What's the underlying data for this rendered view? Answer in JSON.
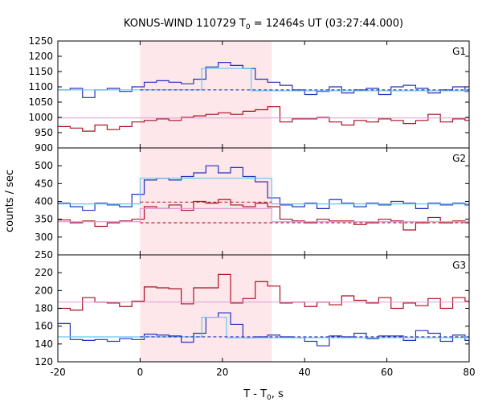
{
  "title_main": "KONUS-WIND 110729 T",
  "title_sub": "0",
  "title_rest": " = 12464s UT (03:27:44.000)",
  "ylabel": "counts / sec",
  "xlabel_main": "T - T",
  "xlabel_sub": "0",
  "xlabel_rest": ", s",
  "colors": {
    "blue": "#2233bb",
    "red": "#aa1122",
    "cyan": "#66c8ee",
    "pink": "#e49ad8",
    "shade": "#fde7ea"
  },
  "chart_data": [
    {
      "type": "line",
      "panel": "G1",
      "xlim": [
        -20,
        80
      ],
      "ylim": [
        900,
        1250
      ],
      "yticks": [
        900,
        950,
        1000,
        1050,
        1100,
        1150,
        1200,
        1250
      ],
      "xticks": [],
      "shaded_interval": [
        0,
        32
      ],
      "bin_edges": [
        -20,
        -17,
        -14,
        -11,
        -8,
        -5,
        -2,
        1,
        4,
        7,
        10,
        13,
        16,
        19,
        22,
        25,
        28,
        31,
        34,
        37,
        40,
        43,
        46,
        49,
        52,
        55,
        58,
        61,
        64,
        67,
        70,
        73,
        76,
        79,
        80
      ],
      "series": [
        {
          "color": "blue",
          "style": "step",
          "values": [
            1090,
            1095,
            1065,
            1090,
            1095,
            1085,
            1100,
            1115,
            1120,
            1115,
            1110,
            1125,
            1165,
            1180,
            1170,
            1160,
            1125,
            1115,
            1105,
            1090,
            1075,
            1085,
            1100,
            1080,
            1090,
            1095,
            1075,
            1100,
            1105,
            1095,
            1080,
            1090,
            1100,
            1085
          ]
        },
        {
          "color": "red",
          "style": "step",
          "values": [
            970,
            965,
            955,
            975,
            960,
            970,
            985,
            990,
            995,
            990,
            1000,
            1005,
            1010,
            1015,
            1010,
            1020,
            1025,
            1035,
            985,
            995,
            995,
            1000,
            985,
            975,
            990,
            985,
            995,
            990,
            980,
            990,
            1010,
            985,
            995,
            990
          ]
        },
        {
          "color": "cyan",
          "style": "piecewise",
          "segments": [
            [
              -20,
              15,
              1090
            ],
            [
              15,
              27,
              1160
            ],
            [
              27,
              80,
              1087
            ]
          ]
        },
        {
          "color": "blue",
          "style": "dashed",
          "y": 1090,
          "x_range": [
            0,
            80
          ]
        },
        {
          "color": "pink",
          "style": "hline",
          "y": 998
        }
      ]
    },
    {
      "type": "line",
      "panel": "G2",
      "xlim": [
        -20,
        80
      ],
      "ylim": [
        250,
        550
      ],
      "yticks": [
        250,
        300,
        350,
        400,
        450,
        500
      ],
      "xticks": [],
      "shaded_interval": [
        0,
        32
      ],
      "bin_edges": [
        -20,
        -17,
        -14,
        -11,
        -8,
        -5,
        -2,
        1,
        4,
        7,
        10,
        13,
        16,
        19,
        22,
        25,
        28,
        31,
        34,
        37,
        40,
        43,
        46,
        49,
        52,
        55,
        58,
        61,
        64,
        67,
        70,
        73,
        76,
        79,
        80
      ],
      "series": [
        {
          "color": "blue",
          "style": "step",
          "values": [
            395,
            385,
            375,
            395,
            390,
            385,
            420,
            460,
            465,
            460,
            470,
            480,
            500,
            480,
            495,
            470,
            455,
            410,
            390,
            385,
            395,
            380,
            405,
            395,
            385,
            395,
            390,
            400,
            395,
            380,
            395,
            390,
            395,
            390
          ]
        },
        {
          "color": "red",
          "style": "step",
          "values": [
            348,
            340,
            345,
            330,
            340,
            345,
            350,
            385,
            380,
            390,
            375,
            400,
            395,
            405,
            390,
            385,
            395,
            385,
            350,
            345,
            340,
            350,
            345,
            345,
            335,
            340,
            350,
            345,
            320,
            340,
            355,
            340,
            345,
            340
          ]
        },
        {
          "color": "cyan",
          "style": "piecewise",
          "segments": [
            [
              -20,
              0,
              393
            ],
            [
              0,
              32,
              465
            ],
            [
              32,
              80,
              393
            ]
          ]
        },
        {
          "color": "pink",
          "style": "piecewise",
          "segments": [
            [
              -20,
              0,
              343
            ],
            [
              0,
              32,
              380
            ],
            [
              32,
              80,
              343
            ]
          ]
        },
        {
          "color": "red",
          "style": "dashed",
          "y": 340,
          "x_range": [
            0,
            80
          ]
        },
        {
          "color": "red",
          "style": "dashed",
          "y": 398,
          "x_range": [
            0,
            32
          ]
        }
      ]
    },
    {
      "type": "line",
      "panel": "G3",
      "xlim": [
        -20,
        80
      ],
      "ylim": [
        120,
        240
      ],
      "yticks": [
        120,
        140,
        160,
        180,
        200,
        220
      ],
      "xticks": [
        -20,
        0,
        20,
        40,
        60,
        80
      ],
      "shaded_interval": [
        0,
        32
      ],
      "bin_edges": [
        -20,
        -17,
        -14,
        -11,
        -8,
        -5,
        -2,
        1,
        4,
        7,
        10,
        13,
        16,
        19,
        22,
        25,
        28,
        31,
        34,
        37,
        40,
        43,
        46,
        49,
        52,
        55,
        58,
        61,
        64,
        67,
        70,
        73,
        76,
        79,
        80
      ],
      "series": [
        {
          "color": "red",
          "style": "step",
          "values": [
            180,
            178,
            192,
            187,
            186,
            182,
            188,
            204,
            203,
            202,
            185,
            203,
            203,
            218,
            186,
            191,
            210,
            205,
            186,
            187,
            182,
            187,
            184,
            194,
            189,
            186,
            192,
            180,
            186,
            183,
            191,
            180,
            192,
            188
          ]
        },
        {
          "color": "blue",
          "style": "step",
          "values": [
            163,
            145,
            144,
            145,
            143,
            146,
            145,
            151,
            150,
            149,
            142,
            152,
            170,
            175,
            162,
            147,
            148,
            150,
            148,
            147,
            143,
            138,
            149,
            148,
            152,
            146,
            149,
            149,
            144,
            155,
            152,
            143,
            150,
            144
          ]
        },
        {
          "color": "cyan",
          "style": "piecewise",
          "segments": [
            [
              -20,
              15,
              148
            ],
            [
              15,
              21,
              170
            ],
            [
              21,
              80,
              147
            ]
          ]
        },
        {
          "color": "blue",
          "style": "dashed",
          "y": 148,
          "x_range": [
            0,
            80
          ]
        },
        {
          "color": "pink",
          "style": "hline",
          "y": 187
        }
      ]
    }
  ],
  "panels": [
    {
      "label": "G1"
    },
    {
      "label": "G2"
    },
    {
      "label": "G3"
    }
  ]
}
